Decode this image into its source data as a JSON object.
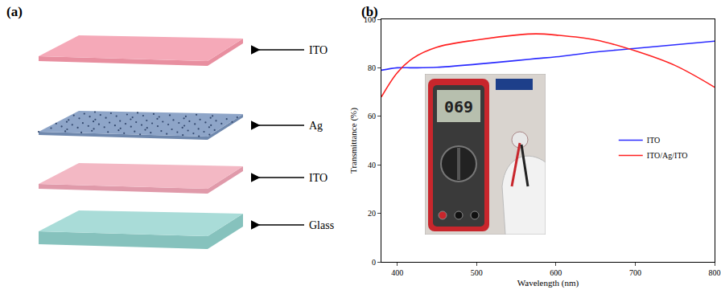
{
  "figure": {
    "panel_a": {
      "label": "(a)",
      "layers": [
        "ITO",
        "Ag",
        "ITO",
        "Glass"
      ]
    },
    "panel_b": {
      "label": "(b)",
      "photo_inset": {
        "meter_display": "069"
      }
    }
  },
  "chart_data": {
    "type": "line",
    "x_label": "Wavelength (nm)",
    "y_label": "Transmittance (%)",
    "x": [
      380,
      400,
      420,
      450,
      500,
      550,
      575,
      600,
      650,
      700,
      750,
      800
    ],
    "series": [
      {
        "name": "ITO",
        "color": "#2b2bff",
        "values": [
          79,
          80,
          80,
          80.2,
          81.5,
          83,
          83.8,
          84.5,
          86.5,
          88,
          89.5,
          91
        ]
      },
      {
        "name": "ITO/Ag/ITO",
        "color": "#ff2020",
        "values": [
          68,
          78,
          84,
          88.5,
          91.5,
          93.5,
          94,
          93.5,
          91.5,
          87,
          81,
          72
        ]
      }
    ],
    "xlim": [
      380,
      800
    ],
    "ylim": [
      0,
      100
    ],
    "xticks": [
      400,
      500,
      600,
      700,
      800
    ],
    "yticks": [
      0,
      20,
      40,
      60,
      80,
      100
    ],
    "grid": false,
    "legend": "right"
  }
}
